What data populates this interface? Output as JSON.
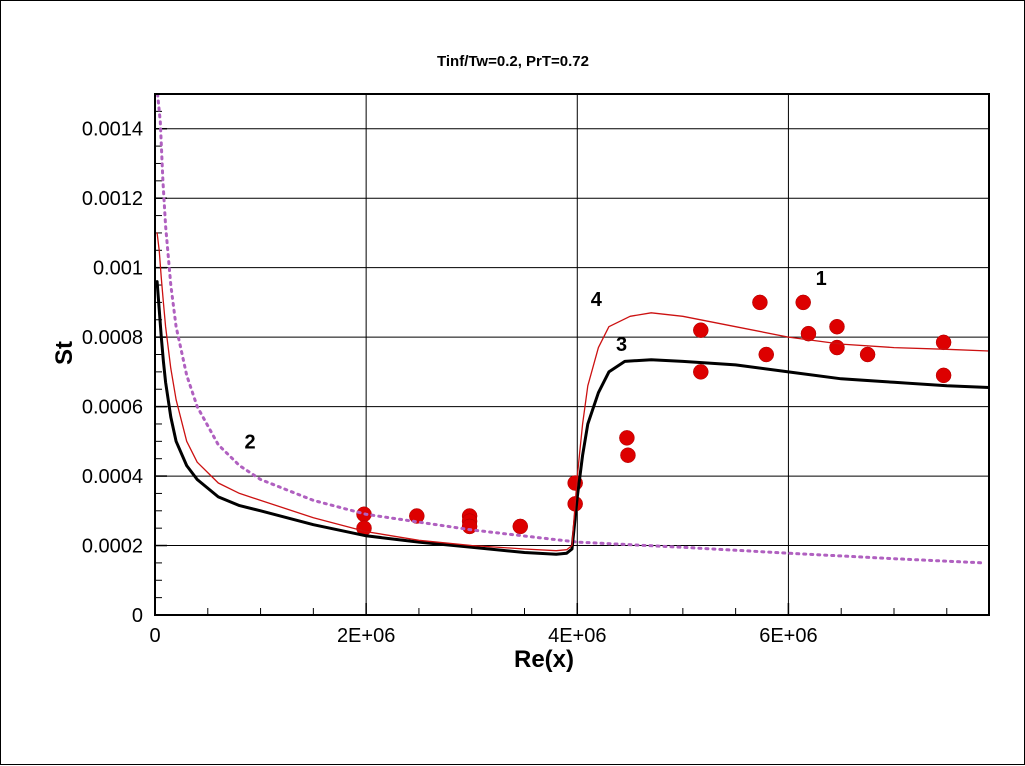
{
  "chart_data": {
    "type": "line",
    "title": "Tinf/Tw=0.2, PrT=0.72",
    "xlabel": "Re(x)",
    "ylabel": "St",
    "xlim": [
      0,
      7900000
    ],
    "ylim": [
      0,
      0.0015
    ],
    "grid": true,
    "x_ticks": [
      {
        "value": 0,
        "label": "0"
      },
      {
        "value": 2000000,
        "label": "2E+06"
      },
      {
        "value": 4000000,
        "label": "4E+06"
      },
      {
        "value": 6000000,
        "label": "6E+06"
      }
    ],
    "y_ticks": [
      {
        "value": 0,
        "label": "0"
      },
      {
        "value": 0.0002,
        "label": "0.0002"
      },
      {
        "value": 0.0004,
        "label": "0.0004"
      },
      {
        "value": 0.0006,
        "label": "0.0006"
      },
      {
        "value": 0.0008,
        "label": "0.0008"
      },
      {
        "value": 0.001,
        "label": "0.001"
      },
      {
        "value": 0.0012,
        "label": "0.0012"
      },
      {
        "value": 0.0014,
        "label": "0.0014"
      }
    ],
    "series": [
      {
        "name": "1",
        "kind": "markers",
        "color": "#dd0000",
        "points": [
          [
            1980000,
            0.00029
          ],
          [
            1980000,
            0.00025
          ],
          [
            2480000,
            0.000285
          ],
          [
            2980000,
            0.000285
          ],
          [
            2980000,
            0.00027
          ],
          [
            2980000,
            0.000255
          ],
          [
            3460000,
            0.000255
          ],
          [
            3980000,
            0.00038
          ],
          [
            3980000,
            0.00032
          ],
          [
            4470000,
            0.00051
          ],
          [
            4480000,
            0.00046
          ],
          [
            5170000,
            0.00082
          ],
          [
            5170000,
            0.0007
          ],
          [
            5730000,
            0.0009
          ],
          [
            5790000,
            0.00075
          ],
          [
            6140000,
            0.0009
          ],
          [
            6190000,
            0.00081
          ],
          [
            6460000,
            0.00083
          ],
          [
            6460000,
            0.00077
          ],
          [
            6750000,
            0.00075
          ],
          [
            7470000,
            0.000785
          ],
          [
            7470000,
            0.00069
          ]
        ]
      },
      {
        "name": "2",
        "kind": "dotted",
        "color": "#b060c0",
        "points": [
          [
            25000,
            0.0015
          ],
          [
            50000,
            0.00142
          ],
          [
            75000,
            0.00125
          ],
          [
            100000,
            0.00112
          ],
          [
            150000,
            0.00095
          ],
          [
            200000,
            0.00083
          ],
          [
            300000,
            0.00069
          ],
          [
            400000,
            0.0006
          ],
          [
            600000,
            0.00049
          ],
          [
            800000,
            0.00043
          ],
          [
            1000000,
            0.00039
          ],
          [
            1500000,
            0.00033
          ],
          [
            2000000,
            0.00029
          ],
          [
            3000000,
            0.000245
          ],
          [
            4000000,
            0.00021
          ],
          [
            5000000,
            0.000195
          ],
          [
            6000000,
            0.000178
          ],
          [
            7000000,
            0.000162
          ],
          [
            7850000,
            0.00015
          ]
        ]
      },
      {
        "name": "3",
        "kind": "line",
        "color": "#000000",
        "width": 3,
        "points": [
          [
            20000,
            0.00096
          ],
          [
            40000,
            0.00088
          ],
          [
            60000,
            0.0008
          ],
          [
            80000,
            0.00073
          ],
          [
            100000,
            0.00067
          ],
          [
            150000,
            0.00057
          ],
          [
            200000,
            0.0005
          ],
          [
            300000,
            0.00043
          ],
          [
            400000,
            0.00039
          ],
          [
            600000,
            0.00034
          ],
          [
            800000,
            0.000315
          ],
          [
            1000000,
            0.0003
          ],
          [
            1500000,
            0.00026
          ],
          [
            2000000,
            0.000228
          ],
          [
            2500000,
            0.00021
          ],
          [
            3000000,
            0.000195
          ],
          [
            3500000,
            0.00018
          ],
          [
            3800000,
            0.000175
          ],
          [
            3900000,
            0.000178
          ],
          [
            3950000,
            0.00019
          ],
          [
            4000000,
            0.00034
          ],
          [
            4050000,
            0.00046
          ],
          [
            4100000,
            0.00055
          ],
          [
            4200000,
            0.00064
          ],
          [
            4300000,
            0.0007
          ],
          [
            4450000,
            0.00073
          ],
          [
            4700000,
            0.000735
          ],
          [
            5000000,
            0.00073
          ],
          [
            5500000,
            0.00072
          ],
          [
            6000000,
            0.0007
          ],
          [
            6500000,
            0.00068
          ],
          [
            7000000,
            0.00067
          ],
          [
            7500000,
            0.00066
          ],
          [
            7900000,
            0.000655
          ]
        ]
      },
      {
        "name": "4",
        "kind": "line",
        "color": "#cc1111",
        "width": 1.3,
        "points": [
          [
            20000,
            0.0011
          ],
          [
            40000,
            0.00105
          ],
          [
            60000,
            0.00097
          ],
          [
            80000,
            0.0009
          ],
          [
            100000,
            0.00083
          ],
          [
            150000,
            0.00071
          ],
          [
            200000,
            0.00062
          ],
          [
            300000,
            0.0005
          ],
          [
            400000,
            0.00044
          ],
          [
            600000,
            0.00038
          ],
          [
            800000,
            0.00035
          ],
          [
            1000000,
            0.00033
          ],
          [
            1500000,
            0.00028
          ],
          [
            2000000,
            0.00024
          ],
          [
            2500000,
            0.000215
          ],
          [
            3000000,
            0.0002
          ],
          [
            3500000,
            0.00019
          ],
          [
            3800000,
            0.000185
          ],
          [
            3900000,
            0.000188
          ],
          [
            3950000,
            0.0002
          ],
          [
            4000000,
            0.0004
          ],
          [
            4050000,
            0.00055
          ],
          [
            4100000,
            0.00066
          ],
          [
            4200000,
            0.00077
          ],
          [
            4300000,
            0.00083
          ],
          [
            4500000,
            0.00086
          ],
          [
            4700000,
            0.00087
          ],
          [
            5000000,
            0.00086
          ],
          [
            5500000,
            0.00083
          ],
          [
            6000000,
            0.0008
          ],
          [
            6500000,
            0.00078
          ],
          [
            7000000,
            0.00077
          ],
          [
            7500000,
            0.000765
          ],
          [
            7900000,
            0.00076
          ]
        ]
      }
    ],
    "annotations": [
      {
        "text": "1",
        "x": 6310000,
        "y": 0.00095
      },
      {
        "text": "2",
        "x": 900000,
        "y": 0.00048
      },
      {
        "text": "3",
        "x": 4420000,
        "y": 0.00076
      },
      {
        "text": "4",
        "x": 4180000,
        "y": 0.00089
      }
    ]
  }
}
